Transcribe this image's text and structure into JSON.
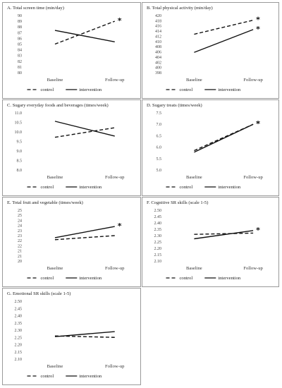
{
  "chart_data": [
    {
      "type": "line",
      "title": "A.  Total screen time (min/day)",
      "categories": [
        "Baseline",
        "Follow-up"
      ],
      "ylim": [
        80,
        90
      ],
      "ytick_step": 1,
      "series": [
        {
          "name": "control",
          "values": [
            85.0,
            89.0
          ],
          "style": "dashed",
          "marker": "*"
        },
        {
          "name": "intervention",
          "values": [
            87.4,
            85.4
          ],
          "style": "solid",
          "marker": ""
        }
      ],
      "legend": [
        "control",
        "intervention"
      ],
      "legend_position": "bottom"
    },
    {
      "type": "line",
      "title": "B.  Total physical activity (min/day)",
      "categories": [
        "Baseline",
        "Follow-up"
      ],
      "ylim": [
        398,
        420
      ],
      "ytick_step": 2,
      "series": [
        {
          "name": "control",
          "values": [
            412.8,
            418.2
          ],
          "style": "dashed",
          "marker": "*"
        },
        {
          "name": "intervention",
          "values": [
            405.8,
            414.6
          ],
          "style": "solid",
          "marker": "*"
        }
      ],
      "legend": [
        "control",
        "intervention"
      ],
      "legend_position": "bottom"
    },
    {
      "type": "line",
      "title": "C.  Sugary everyday foods and beverages (times/week)",
      "categories": [
        "Baseline",
        "Follow-up"
      ],
      "ylim": [
        8.0,
        11.0
      ],
      "ytick_step": 0.5,
      "ytick_decimals": 1,
      "series": [
        {
          "name": "control",
          "values": [
            9.72,
            10.22
          ],
          "style": "dashed",
          "marker": ""
        },
        {
          "name": "intervention",
          "values": [
            10.56,
            9.78
          ],
          "style": "solid",
          "marker": ""
        }
      ],
      "legend": [
        "control",
        "intervention"
      ],
      "legend_position": "bottom"
    },
    {
      "type": "line",
      "title": "D.  Sugary treats (times/week)",
      "categories": [
        "Baseline",
        "Follow-up"
      ],
      "ylim": [
        5.0,
        7.5
      ],
      "ytick_step": 0.5,
      "ytick_decimals": 1,
      "series": [
        {
          "name": "control",
          "values": [
            5.85,
            7.0
          ],
          "style": "dashed",
          "marker": "*"
        },
        {
          "name": "intervention",
          "values": [
            5.78,
            7.0
          ],
          "style": "solid",
          "marker": "*"
        }
      ],
      "legend": [
        "control",
        "intervention"
      ],
      "legend_position": "bottom"
    },
    {
      "type": "line",
      "title": "E.  Total fruit and vegetable (times/week)",
      "categories": [
        "Baseline",
        "Follow-up"
      ],
      "ylim": [
        20,
        25
      ],
      "ytick_step": 0.5,
      "ytick_labels": [
        "20",
        "21",
        "21",
        "22",
        "22",
        "23",
        "23",
        "24",
        "24",
        "25",
        "25"
      ],
      "series": [
        {
          "name": "control",
          "values": [
            22.1,
            22.5
          ],
          "style": "dashed",
          "marker": ""
        },
        {
          "name": "intervention",
          "values": [
            22.3,
            23.4
          ],
          "style": "solid",
          "marker": "*"
        }
      ],
      "legend": [
        "control",
        "intervention"
      ],
      "legend_position": "bottom"
    },
    {
      "type": "line",
      "title": "F.  Cognitive SR skills (scale 1-5)",
      "categories": [
        "Baseline",
        "Follow-up"
      ],
      "ylim": [
        2.1,
        2.5
      ],
      "ytick_step": 0.05,
      "ytick_decimals": 2,
      "series": [
        {
          "name": "control",
          "values": [
            2.31,
            2.32
          ],
          "style": "dashed",
          "marker": ""
        },
        {
          "name": "intervention",
          "values": [
            2.275,
            2.34
          ],
          "style": "solid",
          "marker": "*"
        }
      ],
      "legend": [
        "control",
        "intervention"
      ],
      "legend_position": "bottom"
    },
    {
      "type": "line",
      "title": "G.  Emotional SR skills (scale 1-5)",
      "categories": [
        "Baseline",
        "Follow-up"
      ],
      "ylim": [
        2.1,
        2.5
      ],
      "ytick_step": 0.05,
      "ytick_decimals": 2,
      "series": [
        {
          "name": "control",
          "values": [
            2.26,
            2.25
          ],
          "style": "dashed",
          "marker": ""
        },
        {
          "name": "intervention",
          "values": [
            2.255,
            2.29
          ],
          "style": "solid",
          "marker": ""
        }
      ],
      "legend": [
        "control",
        "intervention"
      ],
      "legend_position": "bottom"
    }
  ]
}
